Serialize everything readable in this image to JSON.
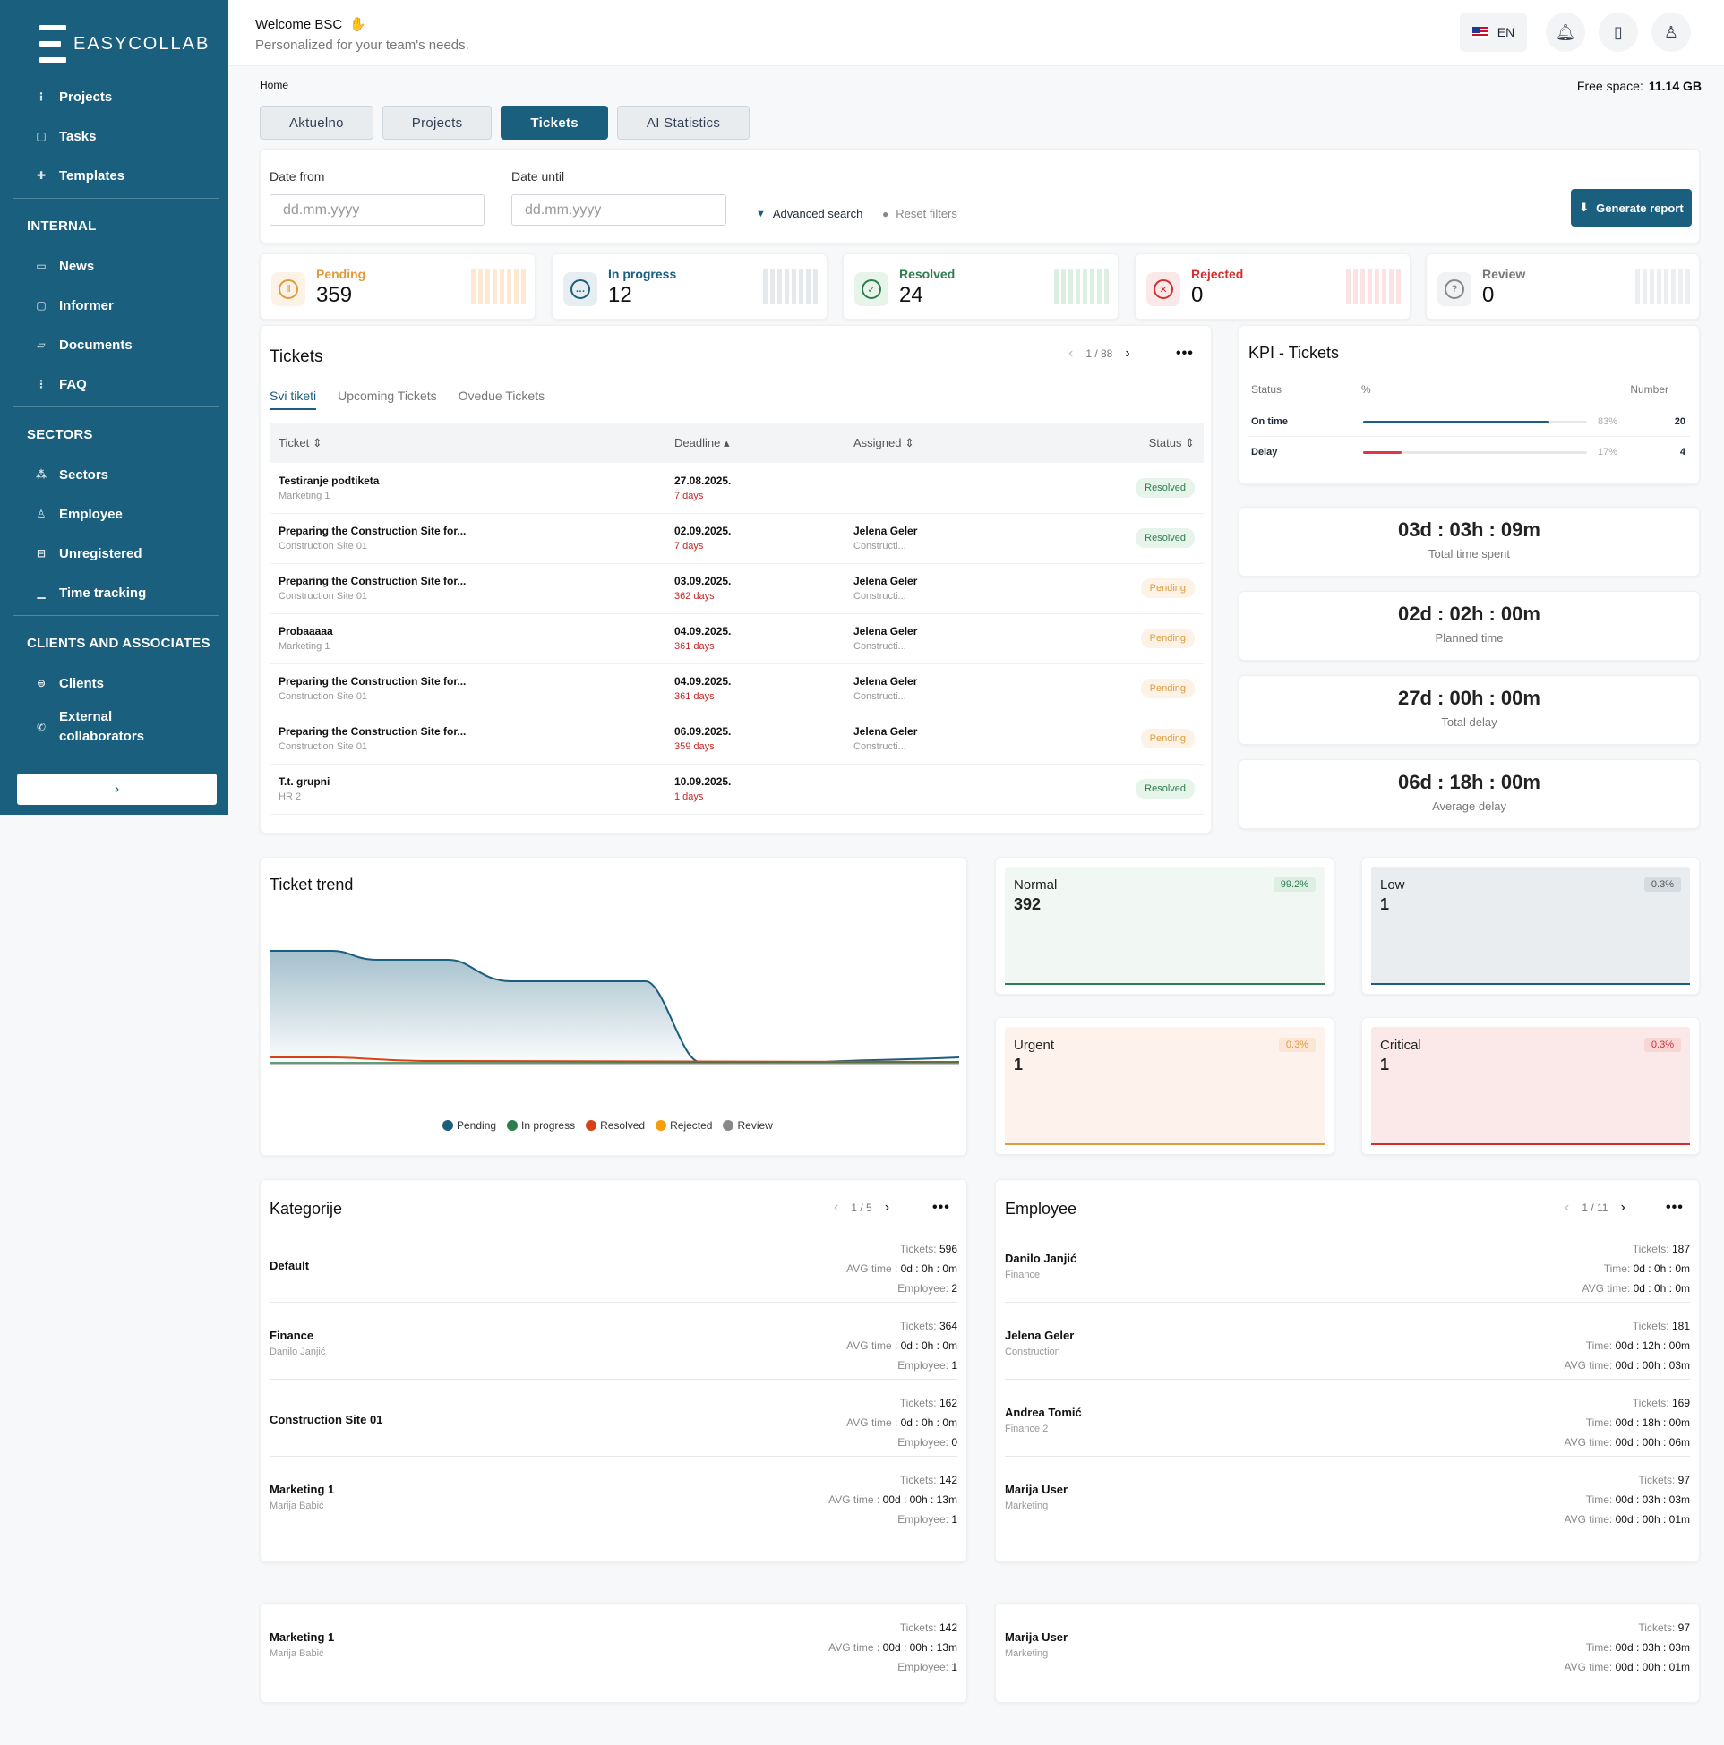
{
  "app": {
    "brand": "EASYCOLLAB",
    "welcome": "Welcome BSC",
    "subtitle": "Personalized for your team's needs.",
    "lang": "EN"
  },
  "sidebar": {
    "top_items": [
      {
        "label": "Projects",
        "icon": "projects-icon"
      },
      {
        "label": "Tasks",
        "icon": "tasks-icon"
      },
      {
        "label": "Templates",
        "icon": "templates-icon"
      }
    ],
    "sections": [
      {
        "title": "INTERNAL",
        "items": [
          "News",
          "Informer",
          "Documents",
          "FAQ"
        ]
      },
      {
        "title": "SECTORS",
        "items": [
          "Sectors",
          "Employee",
          "Unregistered",
          "Time tracking"
        ]
      },
      {
        "title": "CLIENTS AND ASSOCIATES",
        "items": [
          "Clients",
          "External collaborators"
        ]
      }
    ]
  },
  "breadcrumb": "Home",
  "free_space": {
    "label": "Free space:",
    "value": "11.14 GB"
  },
  "tabs": [
    "Aktuelno",
    "Projects",
    "Tickets",
    "AI Statistics"
  ],
  "filters": {
    "date_from_label": "Date from",
    "date_until_label": "Date until",
    "placeholder": "dd.mm.yyyy",
    "advanced": "Advanced search",
    "reset": "Reset filters",
    "generate": "Generate report"
  },
  "stats": [
    {
      "label": "Pending",
      "value": "359",
      "color": "#e09b3d"
    },
    {
      "label": "In progress",
      "value": "12",
      "color": "#1a5f7e"
    },
    {
      "label": "Resolved",
      "value": "24",
      "color": "#2e7d4f"
    },
    {
      "label": "Rejected",
      "value": "0",
      "color": "#d32f2f"
    },
    {
      "label": "Review",
      "value": "0",
      "color": "#888888"
    }
  ],
  "tickets": {
    "title": "Tickets",
    "page": "1 / 88",
    "subtabs": [
      "Svi tiketi",
      "Upcoming Tickets",
      "Ovedue Tickets"
    ],
    "columns": [
      "Ticket",
      "Deadline",
      "Assigned",
      "Status"
    ],
    "rows": [
      {
        "name": "Testiranje podtiketa",
        "group": "Marketing 1",
        "date": "27.08.2025.",
        "days": "7 days",
        "assignee": "",
        "assignee_sub": "",
        "status": "Resolved"
      },
      {
        "name": "Preparing the Construction Site for...",
        "group": "Construction Site 01",
        "date": "02.09.2025.",
        "days": "7 days",
        "assignee": "Jelena Geler",
        "assignee_sub": "Constructi...",
        "status": "Resolved"
      },
      {
        "name": "Preparing the Construction Site for...",
        "group": "Construction Site 01",
        "date": "03.09.2025.",
        "days": "362 days",
        "assignee": "Jelena Geler",
        "assignee_sub": "Constructi...",
        "status": "Pending"
      },
      {
        "name": "Probaaaaa",
        "group": "Marketing 1",
        "date": "04.09.2025.",
        "days": "361 days",
        "assignee": "Jelena Geler",
        "assignee_sub": "Constructi...",
        "status": "Pending"
      },
      {
        "name": "Preparing the Construction Site for...",
        "group": "Construction Site 01",
        "date": "04.09.2025.",
        "days": "361 days",
        "assignee": "Jelena Geler",
        "assignee_sub": "Constructi...",
        "status": "Pending"
      },
      {
        "name": "Preparing the Construction Site for...",
        "group": "Construction Site 01",
        "date": "06.09.2025.",
        "days": "359 days",
        "assignee": "Jelena Geler",
        "assignee_sub": "Constructi...",
        "status": "Pending"
      },
      {
        "name": "T.t. grupni",
        "group": "HR 2",
        "date": "10.09.2025.",
        "days": "1 days",
        "assignee": "",
        "assignee_sub": "",
        "status": "Resolved"
      }
    ]
  },
  "kpi": {
    "title": "KPI - Tickets",
    "headers": [
      "Status",
      "%",
      "Number"
    ],
    "rows": [
      {
        "label": "On time",
        "pct": "83%",
        "fraction": 0.83,
        "number": "20",
        "color": "#1a5f7e"
      },
      {
        "label": "Delay",
        "pct": "17%",
        "fraction": 0.17,
        "number": "4",
        "color": "#e03545"
      }
    ]
  },
  "times": [
    {
      "value": "03d : 03h : 09m",
      "label": "Total time spent"
    },
    {
      "value": "02d : 02h : 00m",
      "label": "Planned time"
    },
    {
      "value": "27d : 00h : 00m",
      "label": "Total delay"
    },
    {
      "value": "06d : 18h : 00m",
      "label": "Average delay"
    }
  ],
  "trend": {
    "title": "Ticket trend",
    "legend": [
      {
        "name": "Pending",
        "color": "#1a5f7e"
      },
      {
        "name": "In progress",
        "color": "#2e7d4f"
      },
      {
        "name": "Resolved",
        "color": "#d84315"
      },
      {
        "name": "Rejected",
        "color": "#f59e0b"
      },
      {
        "name": "Review",
        "color": "#888888"
      }
    ]
  },
  "priorities": [
    {
      "name": "Normal",
      "value": "392",
      "pct": "99.2%",
      "bg": "#f1f8f3",
      "line": "#2e7d4f",
      "pcolor": "#2e7d4f",
      "pbg": "#dcefe2"
    },
    {
      "name": "Low",
      "value": "1",
      "pct": "0.3%",
      "bg": "#e9edf0",
      "line": "#1a5f7e",
      "pcolor": "#555",
      "pbg": "#d5dbe0"
    },
    {
      "name": "Urgent",
      "value": "1",
      "pct": "0.3%",
      "bg": "#fdf3ec",
      "line": "#e09b3d",
      "pcolor": "#e09b3d",
      "pbg": "#fbe6d5"
    },
    {
      "name": "Critical",
      "value": "1",
      "pct": "0.3%",
      "bg": "#fbe9e9",
      "line": "#d32f2f",
      "pcolor": "#d32f2f",
      "pbg": "#f8d6d6"
    }
  ],
  "categories": {
    "title": "Kategorije",
    "page": "1 / 5",
    "rows": [
      {
        "name": "Default",
        "sub": "",
        "tickets": "596",
        "avg": "0d : 0h : 0m",
        "employee": "2"
      },
      {
        "name": "Finance",
        "sub": "Danilo Janjić",
        "tickets": "364",
        "avg": "0d : 0h : 0m",
        "employee": "1"
      },
      {
        "name": "Construction Site 01",
        "sub": "",
        "tickets": "162",
        "avg": "0d : 0h : 0m",
        "employee": "0"
      },
      {
        "name": "Marketing 1",
        "sub": "Marija Babić",
        "tickets": "142",
        "avg": "00d : 00h : 13m",
        "employee": "1"
      }
    ],
    "labels": {
      "tickets": "Tickets:",
      "avg": "AVG time :",
      "employee": "Employee:"
    }
  },
  "employees": {
    "title": "Employee",
    "page": "1 / 11",
    "rows": [
      {
        "name": "Danilo Janjić",
        "sub": "Finance",
        "tickets": "187",
        "time": "0d : 0h : 0m",
        "avg": "0d : 0h : 0m"
      },
      {
        "name": "Jelena Geler",
        "sub": "Construction",
        "tickets": "181",
        "time": "00d : 12h : 00m",
        "avg": "00d : 00h : 03m"
      },
      {
        "name": "Andrea Tomić",
        "sub": "Finance 2",
        "tickets": "169",
        "time": "00d : 18h : 00m",
        "avg": "00d : 00h : 06m"
      },
      {
        "name": "Marija User",
        "sub": "Marketing",
        "tickets": "97",
        "time": "00d : 03h : 03m",
        "avg": "00d : 00h : 01m"
      }
    ],
    "labels": {
      "tickets": "Tickets:",
      "time": "Time:",
      "avg": "AVG time:"
    }
  },
  "bottom": {
    "cat": {
      "name": "Marketing 1",
      "sub": "Marija Babić",
      "tickets": "142",
      "avg": "00d : 00h : 13m",
      "employee": "1"
    },
    "emp": {
      "name": "Marija User",
      "sub": "Marketing",
      "tickets": "97",
      "time": "00d : 03h : 03m",
      "avg": "00d : 00h : 01m"
    }
  }
}
